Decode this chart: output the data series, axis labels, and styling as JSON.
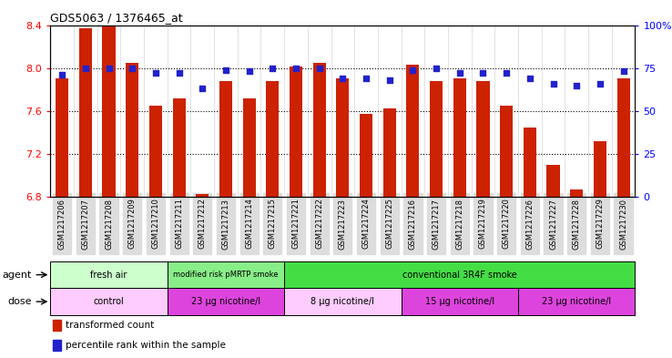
{
  "title": "GDS5063 / 1376465_at",
  "samples": [
    "GSM1217206",
    "GSM1217207",
    "GSM1217208",
    "GSM1217209",
    "GSM1217210",
    "GSM1217211",
    "GSM1217212",
    "GSM1217213",
    "GSM1217214",
    "GSM1217215",
    "GSM1217221",
    "GSM1217222",
    "GSM1217223",
    "GSM1217224",
    "GSM1217225",
    "GSM1217216",
    "GSM1217217",
    "GSM1217218",
    "GSM1217219",
    "GSM1217220",
    "GSM1217226",
    "GSM1217227",
    "GSM1217228",
    "GSM1217229",
    "GSM1217230"
  ],
  "transformed_count": [
    7.9,
    8.37,
    8.39,
    8.05,
    7.65,
    7.72,
    6.83,
    7.88,
    7.72,
    7.88,
    8.01,
    8.05,
    7.9,
    7.57,
    7.62,
    8.03,
    7.88,
    7.9,
    7.88,
    7.65,
    7.45,
    7.1,
    6.87,
    7.32,
    7.9
  ],
  "percentile_rank": [
    71,
    75,
    75,
    75,
    72,
    72,
    63,
    74,
    73,
    75,
    75,
    75,
    69,
    69,
    68,
    74,
    75,
    72,
    72,
    72,
    69,
    66,
    65,
    66,
    73
  ],
  "ylim_left": [
    6.8,
    8.4
  ],
  "ylim_right": [
    0,
    100
  ],
  "yticks_left": [
    6.8,
    7.2,
    7.6,
    8.0,
    8.4
  ],
  "yticks_right": [
    0,
    25,
    50,
    75,
    100
  ],
  "ytick_labels_right": [
    "0",
    "25",
    "50",
    "75",
    "100%"
  ],
  "bar_color": "#cc2200",
  "dot_color": "#2222cc",
  "bar_bottom": 6.8,
  "agent_groups": [
    {
      "label": "fresh air",
      "color": "#ccffcc",
      "start": 0,
      "end": 5
    },
    {
      "label": "modified risk pMRTP smoke",
      "color": "#88ee88",
      "start": 5,
      "end": 10
    },
    {
      "label": "conventional 3R4F smoke",
      "color": "#44dd44",
      "start": 10,
      "end": 25
    }
  ],
  "dose_groups": [
    {
      "label": "control",
      "color": "#ffccff",
      "start": 0,
      "end": 5
    },
    {
      "label": "23 µg nicotine/l",
      "color": "#dd44dd",
      "start": 5,
      "end": 10
    },
    {
      "label": "8 µg nicotine/l",
      "color": "#ffccff",
      "start": 10,
      "end": 15
    },
    {
      "label": "15 µg nicotine/l",
      "color": "#dd44dd",
      "start": 15,
      "end": 20
    },
    {
      "label": "23 µg nicotine/l",
      "color": "#dd44dd",
      "start": 20,
      "end": 25
    }
  ],
  "agent_label": "agent",
  "dose_label": "dose",
  "legend_bar_label": "transformed count",
  "legend_dot_label": "percentile rank within the sample"
}
